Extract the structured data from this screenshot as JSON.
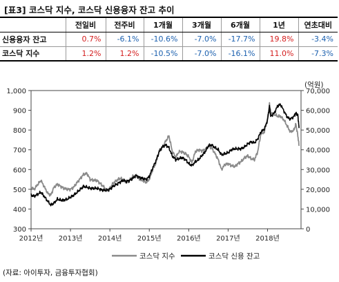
{
  "title": "[표3] 코스닥 지수, 코스닥 신용융자 잔고 추이",
  "table": {
    "columns": [
      "전일비",
      "전주비",
      "1개월",
      "3개월",
      "6개월",
      "1년",
      "연초대비"
    ],
    "rows": [
      {
        "label": "신용융자 잔고",
        "values": [
          "0.7%",
          "-6.1%",
          "-10.6%",
          "-7.0%",
          "-17.7%",
          "19.8%",
          "-3.4%"
        ]
      },
      {
        "label": "코스닥 지수",
        "values": [
          "1.2%",
          "1.2%",
          "-10.5%",
          "-7.0%",
          "-16.1%",
          "11.0%",
          "-7.3%"
        ]
      }
    ]
  },
  "chart_data": {
    "type": "line",
    "y_left": {
      "ticks": [
        "1,000",
        "900",
        "800",
        "700",
        "600",
        "500",
        "400",
        "300"
      ],
      "min": 300,
      "max": 1000
    },
    "y_right": {
      "label": "(억원)",
      "ticks": [
        "70,000",
        "60,000",
        "50,000",
        "40,000",
        "30,000",
        "20,000",
        "10,000",
        "0"
      ],
      "min": 0,
      "max": 70000
    },
    "x_ticks": [
      "2012년",
      "2013년",
      "2014년",
      "2015년",
      "2016년",
      "2017년",
      "2018년"
    ],
    "x_tick_values": [
      2012,
      2013,
      2014,
      2015,
      2016,
      2017,
      2018
    ],
    "x_range": [
      2012,
      2018.85
    ],
    "grid": false,
    "legend_position": "bottom",
    "series": [
      {
        "name": "코스닥 지수",
        "axis": "left",
        "color": "#8a8a8a",
        "points": [
          [
            2012.0,
            510
          ],
          [
            2012.08,
            500
          ],
          [
            2012.17,
            525
          ],
          [
            2012.25,
            545
          ],
          [
            2012.33,
            515
          ],
          [
            2012.42,
            480
          ],
          [
            2012.5,
            470
          ],
          [
            2012.58,
            510
          ],
          [
            2012.67,
            525
          ],
          [
            2012.75,
            515
          ],
          [
            2012.83,
            505
          ],
          [
            2012.92,
            500
          ],
          [
            2013.0,
            500
          ],
          [
            2013.08,
            510
          ],
          [
            2013.17,
            535
          ],
          [
            2013.25,
            555
          ],
          [
            2013.33,
            575
          ],
          [
            2013.42,
            580
          ],
          [
            2013.5,
            550
          ],
          [
            2013.58,
            545
          ],
          [
            2013.67,
            545
          ],
          [
            2013.75,
            530
          ],
          [
            2013.83,
            515
          ],
          [
            2013.92,
            495
          ],
          [
            2014.0,
            505
          ],
          [
            2014.08,
            530
          ],
          [
            2014.17,
            545
          ],
          [
            2014.25,
            555
          ],
          [
            2014.33,
            550
          ],
          [
            2014.42,
            535
          ],
          [
            2014.5,
            545
          ],
          [
            2014.58,
            565
          ],
          [
            2014.67,
            570
          ],
          [
            2014.75,
            550
          ],
          [
            2014.83,
            545
          ],
          [
            2014.92,
            535
          ],
          [
            2015.0,
            550
          ],
          [
            2015.08,
            595
          ],
          [
            2015.17,
            635
          ],
          [
            2015.25,
            690
          ],
          [
            2015.33,
            710
          ],
          [
            2015.42,
            745
          ],
          [
            2015.5,
            770
          ],
          [
            2015.58,
            695
          ],
          [
            2015.67,
            660
          ],
          [
            2015.75,
            690
          ],
          [
            2015.83,
            690
          ],
          [
            2015.92,
            680
          ],
          [
            2016.0,
            665
          ],
          [
            2016.08,
            635
          ],
          [
            2016.17,
            690
          ],
          [
            2016.25,
            700
          ],
          [
            2016.33,
            695
          ],
          [
            2016.42,
            700
          ],
          [
            2016.5,
            720
          ],
          [
            2016.58,
            710
          ],
          [
            2016.67,
            680
          ],
          [
            2016.75,
            650
          ],
          [
            2016.83,
            600
          ],
          [
            2016.92,
            625
          ],
          [
            2017.0,
            630
          ],
          [
            2017.08,
            620
          ],
          [
            2017.17,
            615
          ],
          [
            2017.25,
            630
          ],
          [
            2017.33,
            640
          ],
          [
            2017.42,
            660
          ],
          [
            2017.5,
            670
          ],
          [
            2017.58,
            655
          ],
          [
            2017.67,
            650
          ],
          [
            2017.75,
            690
          ],
          [
            2017.83,
            780
          ],
          [
            2017.92,
            790
          ],
          [
            2018.0,
            860
          ],
          [
            2018.05,
            930
          ],
          [
            2018.08,
            890
          ],
          [
            2018.17,
            880
          ],
          [
            2018.25,
            870
          ],
          [
            2018.33,
            870
          ],
          [
            2018.42,
            850
          ],
          [
            2018.5,
            820
          ],
          [
            2018.58,
            790
          ],
          [
            2018.67,
            800
          ],
          [
            2018.72,
            830
          ],
          [
            2018.77,
            770
          ],
          [
            2018.8,
            720
          ]
        ]
      },
      {
        "name": "코스닥 신용 잔고",
        "axis": "right",
        "color": "#000000",
        "points": [
          [
            2012.0,
            17000
          ],
          [
            2012.08,
            16500
          ],
          [
            2012.17,
            17500
          ],
          [
            2012.25,
            18500
          ],
          [
            2012.33,
            16500
          ],
          [
            2012.42,
            14000
          ],
          [
            2012.5,
            12000
          ],
          [
            2012.58,
            13000
          ],
          [
            2012.67,
            15000
          ],
          [
            2012.75,
            14500
          ],
          [
            2012.83,
            14500
          ],
          [
            2012.92,
            15000
          ],
          [
            2013.0,
            16000
          ],
          [
            2013.08,
            17000
          ],
          [
            2013.17,
            18500
          ],
          [
            2013.25,
            20000
          ],
          [
            2013.33,
            21500
          ],
          [
            2013.42,
            21000
          ],
          [
            2013.5,
            20500
          ],
          [
            2013.58,
            20500
          ],
          [
            2013.67,
            20500
          ],
          [
            2013.75,
            20000
          ],
          [
            2013.83,
            19500
          ],
          [
            2013.92,
            19500
          ],
          [
            2014.0,
            20000
          ],
          [
            2014.08,
            21500
          ],
          [
            2014.17,
            22500
          ],
          [
            2014.25,
            23500
          ],
          [
            2014.33,
            24500
          ],
          [
            2014.42,
            24000
          ],
          [
            2014.5,
            24500
          ],
          [
            2014.58,
            25500
          ],
          [
            2014.67,
            27000
          ],
          [
            2014.75,
            26000
          ],
          [
            2014.83,
            25500
          ],
          [
            2014.92,
            25000
          ],
          [
            2015.0,
            26500
          ],
          [
            2015.08,
            30500
          ],
          [
            2015.17,
            34500
          ],
          [
            2015.25,
            39000
          ],
          [
            2015.33,
            41500
          ],
          [
            2015.42,
            42500
          ],
          [
            2015.5,
            41000
          ],
          [
            2015.58,
            37000
          ],
          [
            2015.67,
            35000
          ],
          [
            2015.75,
            35500
          ],
          [
            2015.83,
            36000
          ],
          [
            2015.92,
            35000
          ],
          [
            2016.0,
            33000
          ],
          [
            2016.08,
            32000
          ],
          [
            2016.17,
            34000
          ],
          [
            2016.25,
            35000
          ],
          [
            2016.33,
            37000
          ],
          [
            2016.42,
            39000
          ],
          [
            2016.5,
            42000
          ],
          [
            2016.58,
            42500
          ],
          [
            2016.67,
            41000
          ],
          [
            2016.75,
            40000
          ],
          [
            2016.83,
            37500
          ],
          [
            2016.92,
            38000
          ],
          [
            2017.0,
            38500
          ],
          [
            2017.08,
            40000
          ],
          [
            2017.17,
            40500
          ],
          [
            2017.25,
            40500
          ],
          [
            2017.33,
            40500
          ],
          [
            2017.42,
            41500
          ],
          [
            2017.5,
            43000
          ],
          [
            2017.58,
            44000
          ],
          [
            2017.67,
            43500
          ],
          [
            2017.75,
            45500
          ],
          [
            2017.83,
            49000
          ],
          [
            2017.92,
            50500
          ],
          [
            2018.0,
            55000
          ],
          [
            2018.05,
            62000
          ],
          [
            2018.08,
            57000
          ],
          [
            2018.17,
            58500
          ],
          [
            2018.25,
            62000
          ],
          [
            2018.33,
            63000
          ],
          [
            2018.42,
            59500
          ],
          [
            2018.5,
            56500
          ],
          [
            2018.58,
            55500
          ],
          [
            2018.67,
            57000
          ],
          [
            2018.72,
            58500
          ],
          [
            2018.77,
            57500
          ],
          [
            2018.8,
            51000
          ]
        ]
      }
    ]
  },
  "source": "(자료: 아이투자, 금융투자협회)"
}
